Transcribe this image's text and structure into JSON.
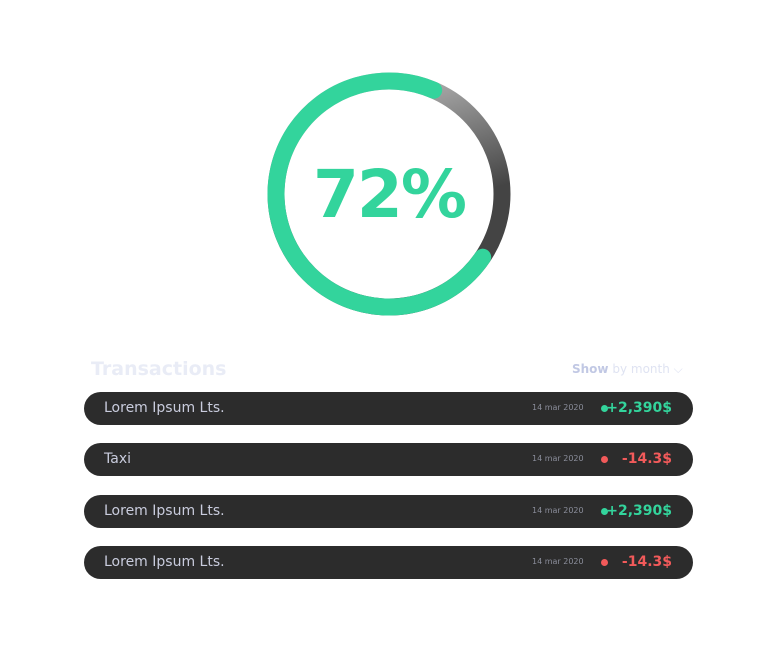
{
  "progress": {
    "value": 72,
    "label": "72%",
    "color": "#33d49c"
  },
  "transactions": {
    "title": "Transactions",
    "show_label": "Show",
    "filter": "by month",
    "items": [
      {
        "name": "Lorem Ipsum Lts.",
        "date": "14 mar 2020",
        "amount": "+2,390$",
        "type": "positive"
      },
      {
        "name": "Taxi",
        "date": "14 mar 2020",
        "amount": "-14.3$",
        "type": "negative"
      },
      {
        "name": "Lorem Ipsum Lts.",
        "date": "14 mar 2020",
        "amount": "+2,390$",
        "type": "positive"
      },
      {
        "name": "Lorem Ipsum Lts.",
        "date": "14 mar 2020",
        "amount": "-14.3$",
        "type": "negative"
      }
    ]
  },
  "colors": {
    "positive": "#33d49c",
    "negative": "#f25a5a"
  }
}
